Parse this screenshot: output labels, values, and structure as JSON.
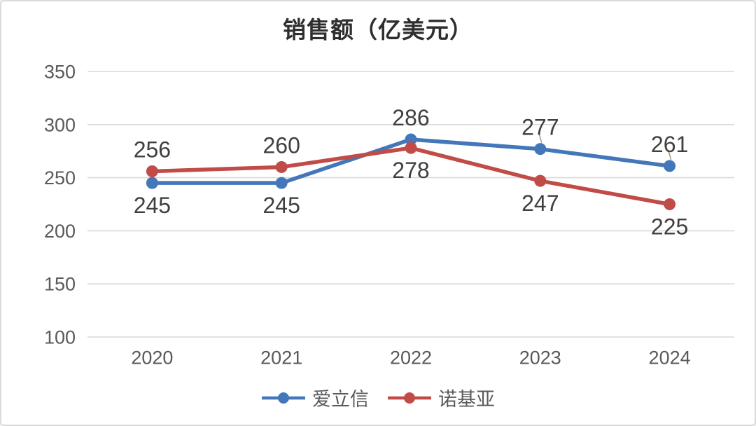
{
  "chart_data": {
    "type": "line",
    "title": "销售额（亿美元）",
    "categories": [
      "2020",
      "2021",
      "2022",
      "2023",
      "2024"
    ],
    "series": [
      {
        "name": "爱立信",
        "color": "#4377B9",
        "values": [
          245,
          245,
          286,
          277,
          261
        ],
        "label_side": [
          "below",
          "below",
          "above",
          "above",
          "above"
        ]
      },
      {
        "name": "诺基亚",
        "color": "#C14B47",
        "values": [
          256,
          260,
          278,
          247,
          225
        ],
        "label_side": [
          "above",
          "above",
          "below",
          "below",
          "below"
        ]
      }
    ],
    "ylim": [
      100,
      350
    ],
    "yticks": [
      350,
      300,
      250,
      200,
      150,
      100
    ],
    "grid": true,
    "legend_position": "bottom",
    "grid_color": "#d9d9d9",
    "axis_color": "#595959",
    "label_color": "#3f3f3f",
    "leaders": [
      {
        "series": 0,
        "index": 3,
        "color": "#9a9a9a"
      },
      {
        "series": 0,
        "index": 4,
        "color": "#a8927a"
      }
    ]
  }
}
